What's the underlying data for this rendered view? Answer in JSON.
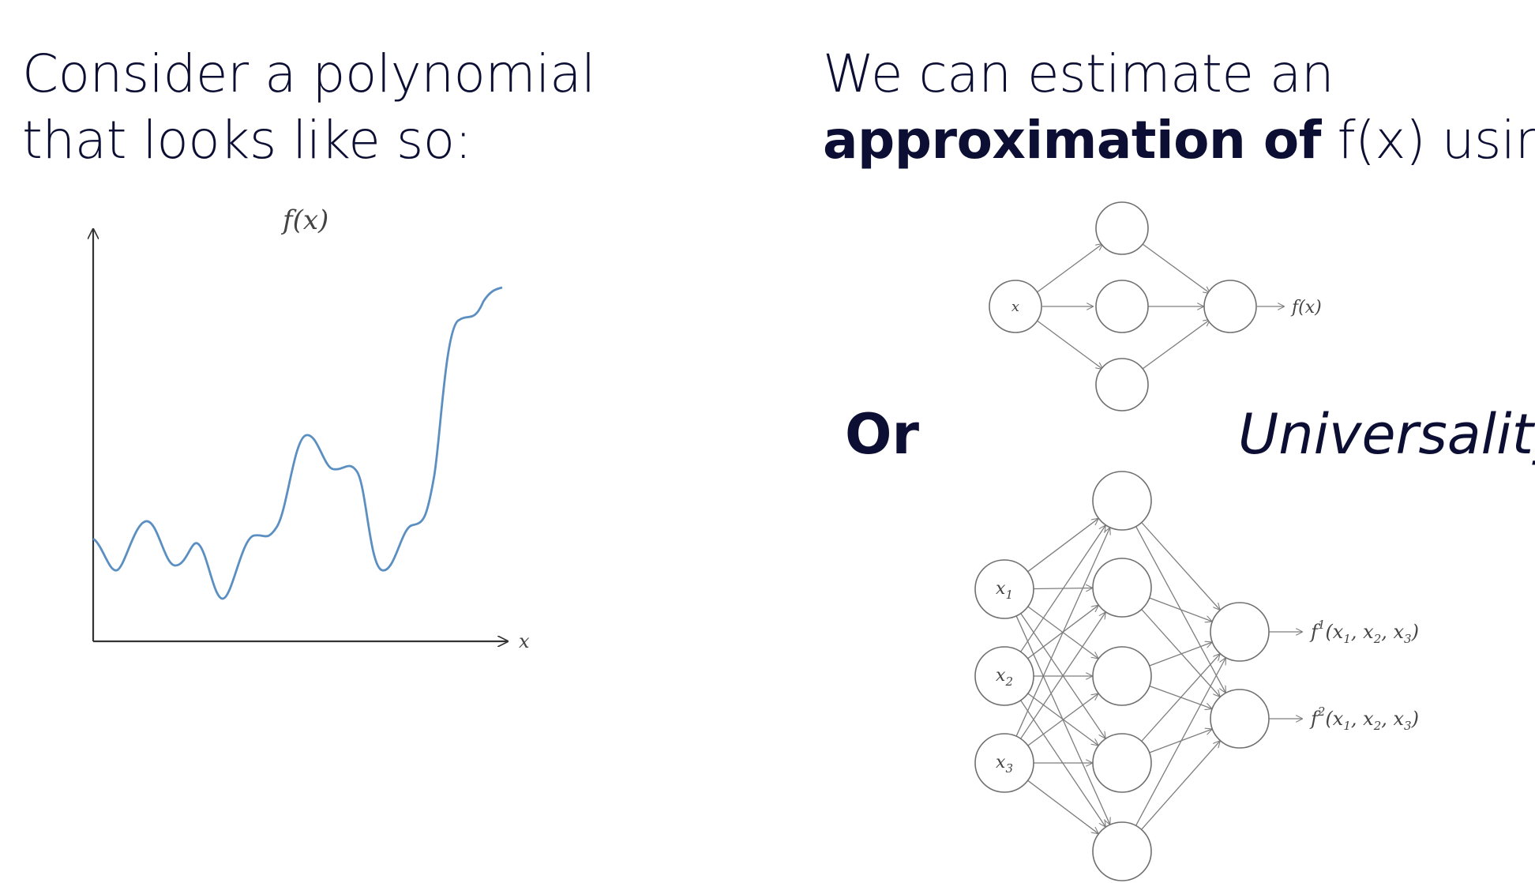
{
  "left": {
    "heading_line1": "Consider a polynomial",
    "heading_line2": "that looks like so:"
  },
  "right": {
    "heading_line1": "We can estimate an",
    "heading_bold": "approximation of",
    "heading_rest": " f(x) using"
  },
  "or_label": "Or",
  "universality_label": "Universality",
  "plot": {
    "y_axis_label": "f(x)",
    "x_axis_label": "x",
    "curve_color": "#5b8fc1"
  },
  "network_small": {
    "input_label": "x",
    "output_label": "f(x)",
    "hidden_count": 3
  },
  "network_large": {
    "input_labels": [
      "x1",
      "x2",
      "x3"
    ],
    "output_labels": [
      "f1(x1, x2, x3)",
      "f2(x1, x2, x3)"
    ],
    "hidden_count": 5
  }
}
